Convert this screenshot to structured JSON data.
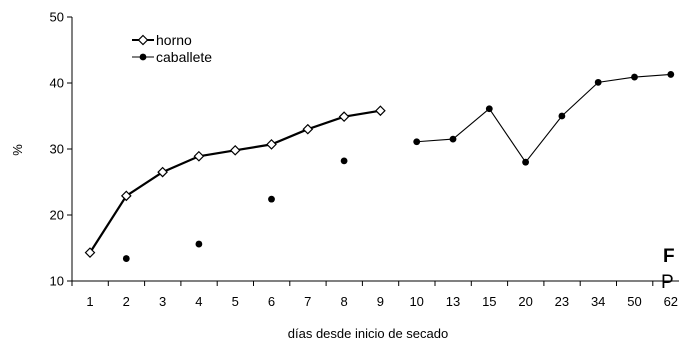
{
  "chart_data": {
    "type": "line",
    "ylabel": "%",
    "xlabel": "días desde inicio de secado",
    "categories": [
      "1",
      "2",
      "3",
      "4",
      "5",
      "6",
      "7",
      "8",
      "9",
      "10",
      "13",
      "15",
      "20",
      "23",
      "34",
      "50",
      "62"
    ],
    "ylim": [
      10,
      50
    ],
    "yticks": [
      "10",
      "20",
      "30",
      "40",
      "50"
    ],
    "legend_position": "top-left",
    "series": [
      {
        "name": "horno",
        "marker": "diamond-open",
        "values": [
          14.3,
          22.9,
          26.5,
          28.9,
          29.8,
          30.7,
          33.0,
          34.9,
          35.8,
          null,
          null,
          null,
          null,
          null,
          null,
          null,
          null
        ]
      },
      {
        "name": "caballete",
        "marker": "circle-filled",
        "values": [
          null,
          13.4,
          null,
          15.6,
          null,
          22.4,
          null,
          28.2,
          null,
          31.1,
          31.5,
          36.1,
          28.0,
          35.0,
          40.1,
          40.9,
          41.3
        ],
        "line_segments": [
          [
            9,
            16
          ]
        ]
      }
    ],
    "side_text": [
      "F",
      "P"
    ]
  }
}
